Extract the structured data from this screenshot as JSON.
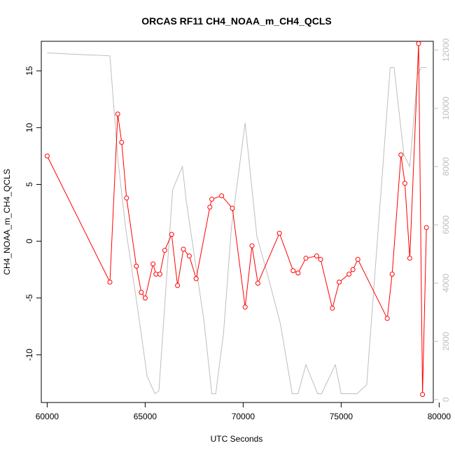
{
  "chart_data": {
    "type": "line",
    "title": "ORCAS RF11 CH4_NOAA_m_CH4_QCLS",
    "xlabel": "UTC Seconds",
    "ylabel": "CH4_NOAA_m_CH4_QCLS",
    "xlim": [
      59700,
      79700
    ],
    "ylim": [
      -14.2,
      17.6
    ],
    "y2lim": [
      -100,
      12300
    ],
    "x_ticks": [
      60000,
      65000,
      70000,
      75000,
      80000
    ],
    "y_ticks": [
      -10,
      -5,
      0,
      5,
      10,
      15
    ],
    "y2_ticks": [
      0,
      2000,
      4000,
      6000,
      8000,
      10000,
      12000
    ],
    "grid": false,
    "colors": {
      "primary": "#ff0000",
      "secondary": "#bebebe",
      "axis": "#000000"
    },
    "series": [
      {
        "axis": "left",
        "style": "line+points",
        "x": [
          60000,
          63200,
          63600,
          63800,
          64050,
          64550,
          64800,
          65000,
          65400,
          65550,
          65750,
          66000,
          66350,
          66650,
          66950,
          67250,
          67600,
          68300,
          68400,
          68900,
          69450,
          70100,
          70450,
          70750,
          71850,
          72550,
          72800,
          73200,
          73750,
          73950,
          74550,
          74900,
          75400,
          75600,
          75850,
          77350,
          77600,
          78050,
          78250,
          78500,
          78950,
          79150,
          79350
        ],
        "y": [
          7.5,
          -3.6,
          11.2,
          8.7,
          3.8,
          -2.2,
          -4.5,
          -5.0,
          -2.0,
          -2.9,
          -2.9,
          -0.8,
          0.6,
          -3.9,
          -0.7,
          -1.3,
          -3.3,
          3.0,
          3.7,
          4.0,
          2.9,
          -5.8,
          -0.4,
          -3.7,
          0.7,
          -2.6,
          -2.8,
          -1.5,
          -1.3,
          -1.6,
          -5.9,
          -3.6,
          -2.9,
          -2.5,
          -1.6,
          -6.8,
          -2.9,
          7.6,
          5.1,
          -1.5,
          17.4,
          -13.5,
          1.2
        ]
      },
      {
        "axis": "right",
        "style": "line",
        "x": [
          60000,
          63200,
          63600,
          64000,
          64600,
          65100,
          65500,
          65700,
          66400,
          66900,
          67100,
          68000,
          68400,
          68600,
          69000,
          69400,
          70100,
          70700,
          71200,
          71900,
          72500,
          72800,
          73200,
          73800,
          74000,
          74700,
          75000,
          75500,
          75800,
          76300,
          77500,
          77700,
          78200,
          78500,
          78900,
          79100,
          79350
        ],
        "y": [
          11900,
          11800,
          8300,
          5900,
          3200,
          800,
          200,
          300,
          7200,
          8000,
          6800,
          2700,
          200,
          200,
          2300,
          5900,
          9500,
          5600,
          4400,
          2600,
          200,
          200,
          1200,
          200,
          200,
          1200,
          200,
          200,
          200,
          500,
          11400,
          11400,
          8400,
          8000,
          11200,
          11400,
          11400
        ]
      }
    ]
  }
}
